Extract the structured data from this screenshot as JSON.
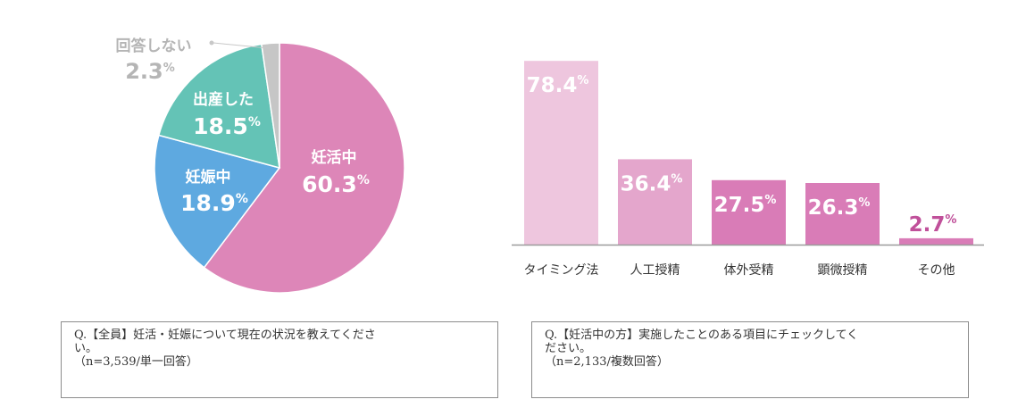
{
  "chart_data": [
    {
      "type": "pie",
      "slices": [
        {
          "label": "妊活中",
          "value": 60.3,
          "display": "60.3",
          "color": "#dd86b8"
        },
        {
          "label": "妊娠中",
          "value": 18.9,
          "display": "18.9",
          "color": "#5ea9e0"
        },
        {
          "label": "出産した",
          "value": 18.5,
          "display": "18.5",
          "color": "#64c3b6"
        },
        {
          "label": "回答しない",
          "value": 2.3,
          "display": "2.3",
          "color": "#c6c6c6"
        }
      ],
      "unit": "%"
    },
    {
      "type": "bar",
      "categories": [
        "タイミング法",
        "人工授精",
        "体外受精",
        "顕微授精",
        "その他"
      ],
      "values": [
        78.4,
        36.4,
        27.5,
        26.3,
        2.7
      ],
      "display": [
        "78.4",
        "36.4",
        "27.5",
        "26.3",
        "2.7"
      ],
      "colors": [
        "#eec6de",
        "#e4a6cc",
        "#d97cb7",
        "#d97cb7",
        "#d97cb7"
      ],
      "label_colors": [
        "#ffffff",
        "#ffffff",
        "#ffffff",
        "#ffffff",
        "#c0509a"
      ],
      "unit": "%",
      "ylim": [
        0,
        80
      ]
    }
  ],
  "captions": {
    "left": {
      "line1": "Q.【全員】妊活・妊娠について現在の状況を教えてくださ",
      "line2": "い。",
      "line3": "（n=3,539/単一回答）"
    },
    "right": {
      "line1": "Q.【妊活中の方】実施したことのある項目にチェックしてく",
      "line2": "ださい。",
      "line3": "（n=2,133/複数回答）"
    }
  }
}
